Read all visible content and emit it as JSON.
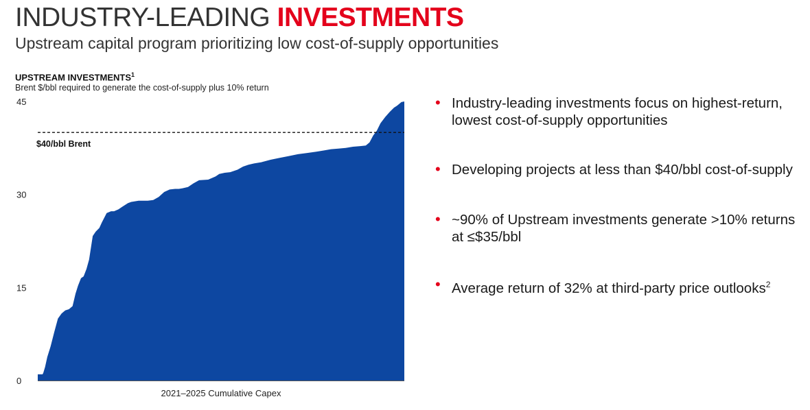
{
  "header": {
    "title_main": "INDUSTRY-LEADING",
    "title_accent": "INVESTMENTS",
    "subtitle": "Upstream capital program prioritizing low cost-of-supply opportunities"
  },
  "colors": {
    "accent": "#e4001b",
    "area_fill": "#0d47a1",
    "text": "#1a1a1a"
  },
  "chart_data": {
    "type": "area",
    "title": "UPSTREAM INVESTMENTS",
    "title_footnote": "1",
    "subtitle": "Brent $/bbl required to generate the cost-of-supply plus 10% return",
    "xlabel": "2021–2025 Cumulative Capex",
    "ylabel": "",
    "ylim": [
      0,
      45
    ],
    "yticks": [
      "45",
      "30",
      "15",
      "0"
    ],
    "ytick_values": [
      45,
      30,
      15,
      0
    ],
    "xlim": [
      0,
      100
    ],
    "grid": false,
    "reference_line": {
      "value": 40,
      "label": "$40/bbl Brent",
      "style": "dashed"
    },
    "series": [
      {
        "x": [
          0,
          1.3,
          1.5,
          2,
          2.6,
          3.5,
          4.5,
          5.5,
          6.5,
          7.5,
          8.5,
          9.5,
          10.3,
          11,
          11.8,
          12.5,
          13.3,
          14,
          15,
          15.8,
          16.8,
          17.5,
          18.8,
          20,
          20.8,
          22,
          23,
          24.6,
          25.5,
          26.5,
          27.5,
          28.5,
          30,
          31.5,
          33,
          34.5,
          36,
          37.5,
          38.5,
          39.5,
          41,
          42.5,
          44,
          46.5,
          48.5,
          49.5,
          51,
          52.5,
          54.5,
          56,
          57.5,
          59,
          61,
          63.5,
          66,
          68.5,
          71,
          73.5,
          76,
          78,
          80,
          82,
          84,
          86,
          88,
          89.5,
          90.5,
          91.5,
          92.5,
          93.5,
          94.8,
          96,
          97.2,
          98,
          98.6,
          99.2,
          100
        ],
        "values": [
          1,
          1,
          1.2,
          2.2,
          3.8,
          5.5,
          7.8,
          10,
          10.8,
          11.3,
          11.5,
          12,
          14,
          15.3,
          16.5,
          16.8,
          18,
          19.5,
          23.3,
          24,
          24.6,
          25.5,
          27,
          27.3,
          27.3,
          27.6,
          28,
          28.6,
          28.8,
          28.9,
          29,
          29,
          29,
          29.1,
          29.6,
          30.4,
          30.8,
          30.9,
          30.9,
          31,
          31.2,
          31.8,
          32.3,
          32.4,
          32.9,
          33.3,
          33.5,
          33.6,
          34,
          34.5,
          34.8,
          35,
          35.2,
          35.6,
          35.9,
          36.2,
          36.5,
          36.7,
          36.9,
          37.1,
          37.3,
          37.4,
          37.5,
          37.7,
          37.8,
          37.9,
          38.4,
          39.5,
          40.3,
          41.5,
          42.5,
          43.3,
          44,
          44.3,
          44.6,
          44.9,
          45
        ]
      }
    ]
  },
  "bullets": [
    {
      "text": "Industry-leading investments focus on highest-return, lowest cost-of-supply opportunities"
    },
    {
      "text": "Developing projects at less than $40/bbl cost-of-supply"
    },
    {
      "text": "~90% of Upstream investments generate >10% returns at ≤$35/bbl"
    },
    {
      "text": "Average return of 32% at third-party price outlooks",
      "footnote": "2"
    }
  ]
}
